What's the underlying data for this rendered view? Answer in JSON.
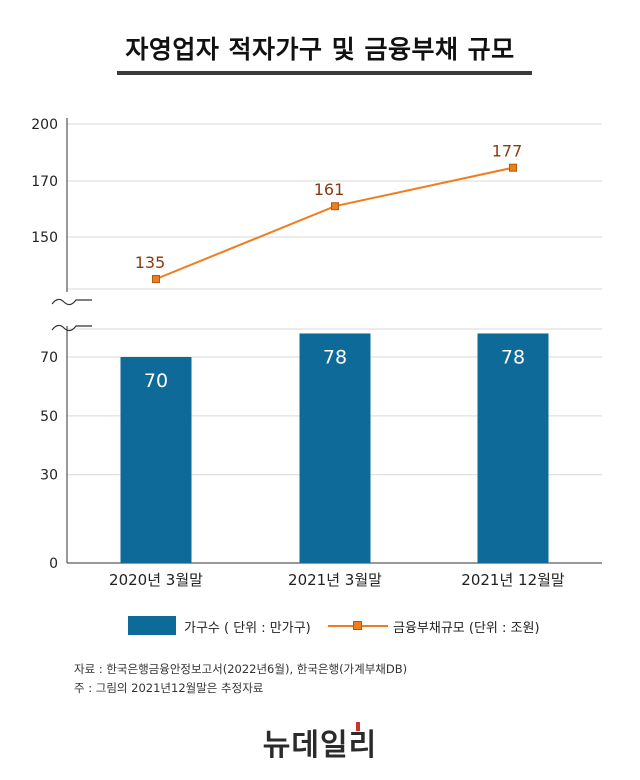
{
  "title": "자영업자 적자가구 및 금융부채 규모",
  "chart_data": {
    "type": "bar",
    "categories": [
      "2020년 3월말",
      "2021년 3월말",
      "2021년 12월말"
    ],
    "series": [
      {
        "name": "가구수 ( 단위 : 만가구)",
        "type": "bar",
        "values": [
          70,
          78,
          78
        ],
        "color": "#0e6a98",
        "axis": "lower",
        "yticks": [
          0,
          30,
          50,
          70
        ]
      },
      {
        "name": "금융부채규모 (단위 : 조원)",
        "type": "line",
        "values": [
          135,
          161,
          177
        ],
        "color": "#f07c1c",
        "label_color": "#8b3a0e",
        "axis": "upper",
        "yticks": [
          150,
          170,
          200
        ]
      }
    ],
    "axis_break": true,
    "grid": true,
    "legend_position": "bottom"
  },
  "notes": [
    "자료 : 한국은행금융안정보고서(2022년6월), 한국은행(가계부채DB)",
    "주 : 그림의 2021년12월말은 추정자료"
  ],
  "logo": "뉴데일리"
}
